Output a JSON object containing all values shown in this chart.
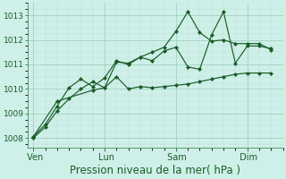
{
  "bg_color": "#cef0e8",
  "grid_color_major": "#99ccbb",
  "grid_color_minor": "#bbddd5",
  "line_color": "#1a5c28",
  "xlabel": "Pression niveau de la mer( hPa )",
  "xlabel_fontsize": 8.5,
  "yticks": [
    1008,
    1009,
    1010,
    1011,
    1012,
    1013
  ],
  "ylim": [
    1007.6,
    1013.5
  ],
  "xtick_labels": [
    " Ven",
    " Lun",
    " Sam",
    " Dim"
  ],
  "xtick_positions": [
    0,
    6,
    12,
    18
  ],
  "xlim": [
    -0.5,
    21
  ],
  "line1_x": [
    0,
    1,
    2,
    3,
    4,
    5,
    6,
    7,
    8,
    9,
    10,
    11,
    12,
    13,
    14,
    15,
    16,
    17,
    18,
    19,
    20
  ],
  "line1": [
    1008.0,
    1008.45,
    1009.1,
    1009.6,
    1010.0,
    1010.3,
    1010.05,
    1011.1,
    1011.05,
    1011.3,
    1011.15,
    1011.55,
    1011.7,
    1010.9,
    1010.8,
    1012.2,
    1013.15,
    1011.05,
    1011.75,
    1011.75,
    1011.65
  ],
  "line2_x": [
    0,
    1,
    2,
    3,
    4,
    5,
    6,
    7,
    8,
    9,
    10,
    11,
    12,
    13,
    14,
    15,
    16,
    17,
    18,
    19,
    20
  ],
  "line2": [
    1008.05,
    1008.55,
    1009.3,
    1010.05,
    1010.4,
    1010.1,
    1010.45,
    1011.15,
    1011.0,
    1011.3,
    1011.5,
    1011.7,
    1012.35,
    1013.15,
    1012.3,
    1011.95,
    1012.0,
    1011.85,
    1011.85,
    1011.85,
    1011.6
  ],
  "line3_x": [
    0,
    2,
    5,
    6,
    7,
    8,
    9,
    10,
    11,
    12,
    13,
    14,
    15,
    16,
    17,
    18,
    19,
    20
  ],
  "line3": [
    1008.05,
    1009.5,
    1009.95,
    1010.05,
    1010.5,
    1010.0,
    1010.1,
    1010.05,
    1010.1,
    1010.15,
    1010.2,
    1010.3,
    1010.4,
    1010.5,
    1010.6,
    1010.65,
    1010.65,
    1010.65
  ],
  "n_points": 21
}
